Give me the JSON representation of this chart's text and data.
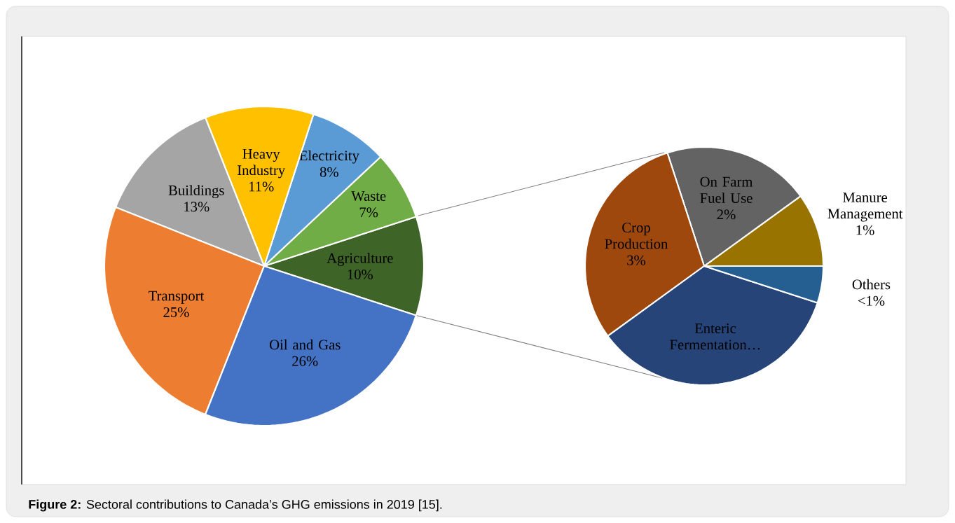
{
  "chart_data": [
    {
      "type": "pie",
      "categories": [
        "Agriculture",
        "Waste",
        "Electricity",
        "Heavy Industry",
        "Buildings",
        "Transport",
        "Oil and Gas"
      ],
      "values": [
        10,
        7,
        8,
        11,
        13,
        25,
        26
      ],
      "colors": [
        "#3f6428",
        "#70ad47",
        "#5b9bd5",
        "#ffc000",
        "#a5a5a5",
        "#ed7d31",
        "#4472c4"
      ],
      "value_labels": [
        "10%",
        "7%",
        "8%",
        "11%",
        "13%",
        "25%",
        "26%"
      ],
      "annotations": [
        "**Figure 2:** Sectoral contributions to Canada’s GHG emissions in 2019 [15]."
      ]
    },
    {
      "type": "pie",
      "categories": [
        "Manure Management",
        "On Farm Fuel Use",
        "Crop Production",
        "Enteric Fermentation…",
        "Others"
      ],
      "values": [
        1,
        2,
        3,
        3.5,
        0.5
      ],
      "colors": [
        "#997300",
        "#636363",
        "#9e480e",
        "#264478",
        "#255e91"
      ],
      "value_labels": [
        "1%",
        "2%",
        "3%",
        null,
        "<1%"
      ]
    }
  ]
}
